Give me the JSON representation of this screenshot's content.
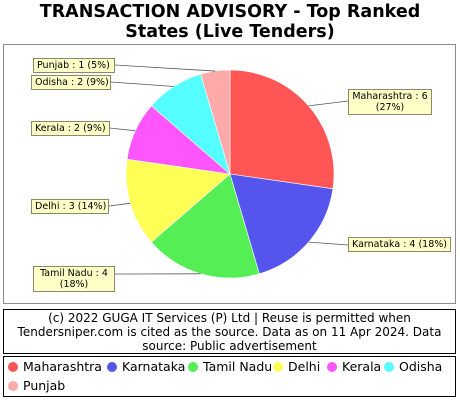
{
  "chart_data": {
    "type": "pie",
    "title": "TRANSACTION ADVISORY - Top Ranked States (Live Tenders)",
    "slices": [
      {
        "name": "Maharashtra",
        "value": 6,
        "percent": 27,
        "color": "#ff5555",
        "label_line1": "Maharashtra : 6",
        "label_line2": "(27%)"
      },
      {
        "name": "Karnataka",
        "value": 4,
        "percent": 18,
        "color": "#5555ee",
        "label_line1": "Karnataka : 4 (18%)",
        "label_line2": ""
      },
      {
        "name": "Tamil Nadu",
        "value": 4,
        "percent": 18,
        "color": "#55ee55",
        "label_line1": "Tamil Nadu : 4",
        "label_line2": "(18%)"
      },
      {
        "name": "Delhi",
        "value": 3,
        "percent": 14,
        "color": "#ffff55",
        "label_line1": "Delhi : 3 (14%)",
        "label_line2": ""
      },
      {
        "name": "Kerala",
        "value": 2,
        "percent": 9,
        "color": "#ff55ff",
        "label_line1": "Kerala : 2 (9%)",
        "label_line2": ""
      },
      {
        "name": "Odisha",
        "value": 2,
        "percent": 9,
        "color": "#55ffff",
        "label_line1": "Odisha : 2 (9%)",
        "label_line2": ""
      },
      {
        "name": "Punjab",
        "value": 1,
        "percent": 5,
        "color": "#ffaaaa",
        "label_line1": "Punjab : 1 (5%)",
        "label_line2": ""
      }
    ],
    "legend_position": "bottom"
  },
  "title_line1": "TRANSACTION ADVISORY - Top Ranked",
  "title_line2": "States (Live Tenders)",
  "source_line1": "(c) 2022 GUGA IT Services (P) Ltd | Reuse is permitted when",
  "source_line2": "Tendersniper.com is cited as the source. Data as on 11 Apr 2024. Data",
  "source_line3": "source: Public advertisement"
}
